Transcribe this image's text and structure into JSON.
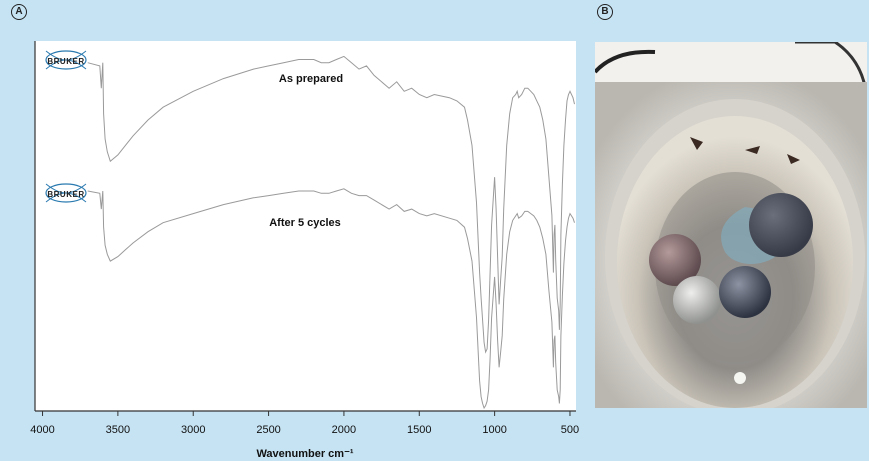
{
  "panels": {
    "a": {
      "letter": "A"
    },
    "b": {
      "letter": "B"
    }
  },
  "logos": [
    {
      "text": "BRUKER"
    },
    {
      "text": "BRUKER"
    }
  ],
  "colors": {
    "background": "#c6e3f3",
    "spectrum_line": "#9a9a9a",
    "axis": "#333333"
  },
  "chart_data": {
    "type": "line",
    "xlabel": "Wavenumber cm⁻¹",
    "ylabel": "",
    "xlim": [
      4050,
      460
    ],
    "x_reversed": true,
    "x_ticks": [
      4000,
      3500,
      3000,
      2500,
      2000,
      1500,
      1000,
      500
    ],
    "y_ticks_shown": false,
    "series": [
      {
        "name": "As prepared",
        "x": [
          3700,
          3620,
          3610,
          3600,
          3595,
          3585,
          3570,
          3550,
          3500,
          3450,
          3400,
          3300,
          3200,
          3000,
          2800,
          2600,
          2500,
          2400,
          2300,
          2200,
          2150,
          2100,
          2050,
          2000,
          1950,
          1900,
          1850,
          1800,
          1700,
          1650,
          1600,
          1550,
          1500,
          1450,
          1400,
          1300,
          1250,
          1200,
          1180,
          1150,
          1120,
          1100,
          1090,
          1080,
          1070,
          1060,
          1050,
          1040,
          1030,
          1020,
          1000,
          990,
          980,
          970,
          960,
          950,
          940,
          920,
          900,
          880,
          860,
          850,
          840,
          820,
          800,
          780,
          760,
          740,
          720,
          700,
          680,
          660,
          640,
          620,
          610,
          605,
          600,
          595,
          585,
          575,
          570,
          565,
          560,
          550,
          540,
          530,
          520,
          510,
          500,
          480,
          470
        ],
        "y": [
          96,
          95,
          88,
          96,
          80,
          72,
          68,
          65,
          67,
          70,
          73,
          78,
          82,
          87,
          91,
          94,
          95,
          96,
          97,
          97,
          96,
          96,
          97,
          98,
          96,
          94,
          95,
          92,
          88,
          90,
          87,
          88,
          86,
          85,
          86,
          85,
          84,
          82,
          78,
          70,
          52,
          30,
          22,
          15,
          8,
          5,
          6,
          15,
          30,
          45,
          60,
          50,
          35,
          20,
          28,
          35,
          50,
          70,
          80,
          85,
          86,
          87,
          85,
          86,
          88,
          88,
          87,
          86,
          84,
          82,
          78,
          72,
          60,
          48,
          30,
          42,
          45,
          34,
          22,
          18,
          12,
          20,
          42,
          58,
          70,
          78,
          84,
          86,
          87,
          85,
          83
        ]
      },
      {
        "name": "After 5 cycles",
        "x": [
          3700,
          3620,
          3610,
          3600,
          3595,
          3585,
          3570,
          3550,
          3500,
          3450,
          3400,
          3300,
          3200,
          3000,
          2800,
          2600,
          2500,
          2400,
          2300,
          2200,
          2150,
          2100,
          2050,
          2000,
          1950,
          1900,
          1850,
          1800,
          1700,
          1650,
          1600,
          1550,
          1500,
          1450,
          1400,
          1300,
          1250,
          1200,
          1180,
          1150,
          1120,
          1100,
          1090,
          1080,
          1070,
          1060,
          1050,
          1040,
          1030,
          1020,
          1000,
          990,
          980,
          970,
          960,
          950,
          940,
          920,
          900,
          880,
          860,
          850,
          840,
          820,
          800,
          780,
          760,
          740,
          720,
          700,
          680,
          660,
          640,
          620,
          610,
          605,
          600,
          595,
          585,
          575,
          570,
          565,
          560,
          550,
          540,
          530,
          520,
          510,
          500,
          480,
          470
        ],
        "y": [
          96,
          95,
          88,
          96,
          80,
          72,
          68,
          65,
          67,
          70,
          73,
          78,
          82,
          86,
          90,
          93,
          94,
          95,
          96,
          96,
          95,
          95,
          96,
          97,
          95,
          94,
          94,
          92,
          88,
          90,
          87,
          88,
          86,
          85,
          86,
          84,
          83,
          80,
          75,
          65,
          40,
          12,
          5,
          2,
          0,
          1,
          3,
          8,
          22,
          40,
          58,
          46,
          30,
          18,
          25,
          32,
          48,
          68,
          78,
          83,
          85,
          86,
          84,
          85,
          87,
          87,
          86,
          85,
          83,
          80,
          75,
          68,
          52,
          38,
          18,
          30,
          32,
          20,
          8,
          5,
          2,
          8,
          32,
          50,
          64,
          74,
          80,
          84,
          86,
          84,
          82
        ]
      }
    ]
  }
}
